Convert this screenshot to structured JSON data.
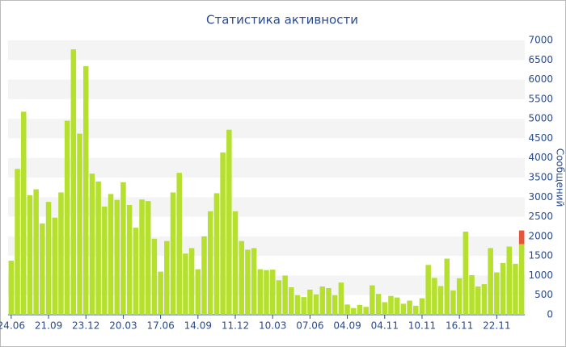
{
  "chart_data": {
    "type": "bar",
    "title": "Статистика активности",
    "y_label": "Сообщений",
    "categories": [
      "24.06",
      null,
      null,
      null,
      null,
      null,
      "21.09",
      null,
      null,
      null,
      null,
      null,
      "23.12",
      null,
      null,
      null,
      null,
      null,
      "20.03",
      null,
      null,
      null,
      null,
      null,
      "17.06",
      null,
      null,
      null,
      null,
      null,
      "14.09",
      null,
      null,
      null,
      null,
      null,
      "11.12",
      null,
      null,
      null,
      null,
      null,
      "10.03",
      null,
      null,
      null,
      null,
      null,
      "07.06",
      null,
      null,
      null,
      null,
      null,
      "04.09",
      null,
      null,
      null,
      null,
      null,
      "04.11",
      null,
      null,
      null,
      null,
      null,
      "10.11",
      null,
      null,
      null,
      null,
      null,
      "16.11",
      null,
      null,
      null,
      null,
      null,
      "22.11",
      null,
      null,
      null,
      null
    ],
    "series": [
      {
        "color": "#b5e02e",
        "values": [
          1380,
          3720,
          5180,
          3050,
          3200,
          2330,
          2880,
          2480,
          3120,
          4950,
          6770,
          4620,
          6340,
          3600,
          3400,
          2760,
          3080,
          2930,
          3380,
          2800,
          2220,
          2940,
          2900,
          1940,
          1100,
          1880,
          3120,
          3620,
          1560,
          1700,
          1160,
          2000,
          2640,
          3100,
          4140,
          4720,
          2640,
          1880,
          1660,
          1700,
          1160,
          1140,
          1150,
          880,
          1000,
          700,
          500,
          450,
          640,
          520,
          720,
          680,
          500,
          820,
          260,
          170,
          250,
          200,
          750,
          530,
          320,
          480,
          440,
          280,
          360,
          230,
          420,
          1270,
          940,
          730,
          1430,
          620,
          930,
          2120,
          1010,
          720,
          780,
          1700,
          1080,
          1320,
          1740,
          1300,
          1800
        ]
      },
      {
        "color": "#e8553a",
        "values": [
          null,
          null,
          null,
          null,
          null,
          null,
          null,
          null,
          null,
          null,
          null,
          null,
          null,
          null,
          null,
          null,
          null,
          null,
          null,
          null,
          null,
          null,
          null,
          null,
          null,
          null,
          null,
          null,
          null,
          null,
          null,
          null,
          null,
          null,
          null,
          null,
          null,
          null,
          null,
          null,
          null,
          null,
          null,
          null,
          null,
          null,
          null,
          null,
          null,
          null,
          null,
          null,
          null,
          null,
          null,
          null,
          null,
          null,
          null,
          null,
          null,
          null,
          null,
          null,
          null,
          null,
          null,
          null,
          null,
          null,
          null,
          null,
          null,
          null,
          null,
          null,
          null,
          null,
          null,
          null,
          null,
          null,
          350
        ]
      }
    ],
    "ylim": [
      0,
      7000
    ],
    "yticks": [
      0,
      500,
      1000,
      1500,
      2000,
      2500,
      3000,
      3500,
      4000,
      4500,
      5000,
      5500,
      6000,
      6500,
      7000
    ],
    "grid": true,
    "stacked": true
  }
}
